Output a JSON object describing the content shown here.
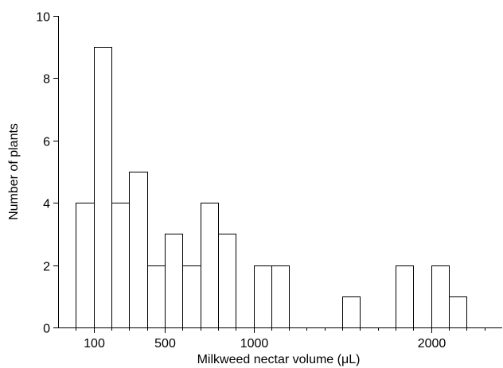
{
  "chart_data": {
    "type": "bar",
    "title": "",
    "xlabel": "Milkweed nectar volume (μL)",
    "ylabel": "Number of plants",
    "xlim": [
      -100,
      2400
    ],
    "ylim": [
      0,
      10
    ],
    "grid": false,
    "bin_width": 100,
    "x_ticks": [
      100,
      500,
      1000,
      2000
    ],
    "x_tick_labels": [
      "100",
      "500",
      "1000",
      "2000"
    ],
    "x_minor_ticks": [
      0,
      200,
      300,
      400,
      600,
      700,
      800,
      900,
      1100,
      1200,
      1300,
      1400,
      1500,
      1600,
      1700,
      1800,
      1900,
      2100,
      2200,
      2300
    ],
    "y_ticks": [
      0,
      2,
      4,
      6,
      8,
      10
    ],
    "y_tick_labels": [
      "0",
      "2",
      "4",
      "6",
      "8",
      "10"
    ],
    "bins": [
      {
        "x": 0,
        "value": 4
      },
      {
        "x": 100,
        "value": 9
      },
      {
        "x": 200,
        "value": 4
      },
      {
        "x": 300,
        "value": 5
      },
      {
        "x": 400,
        "value": 2
      },
      {
        "x": 500,
        "value": 3
      },
      {
        "x": 600,
        "value": 2
      },
      {
        "x": 700,
        "value": 4
      },
      {
        "x": 800,
        "value": 3
      },
      {
        "x": 900,
        "value": 0
      },
      {
        "x": 1000,
        "value": 2
      },
      {
        "x": 1100,
        "value": 2
      },
      {
        "x": 1200,
        "value": 0
      },
      {
        "x": 1300,
        "value": 0
      },
      {
        "x": 1400,
        "value": 0
      },
      {
        "x": 1500,
        "value": 1
      },
      {
        "x": 1600,
        "value": 0
      },
      {
        "x": 1700,
        "value": 0
      },
      {
        "x": 1800,
        "value": 2
      },
      {
        "x": 1900,
        "value": 0
      },
      {
        "x": 2000,
        "value": 2
      },
      {
        "x": 2100,
        "value": 1
      }
    ],
    "colors": {
      "bar_fill": "#ffffff",
      "bar_stroke": "#000000",
      "axis": "#000000"
    }
  }
}
